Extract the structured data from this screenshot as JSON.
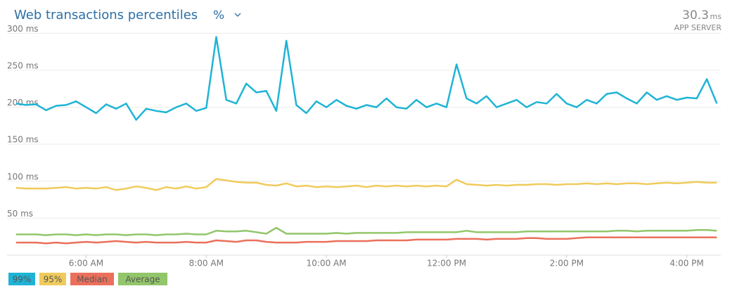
{
  "chart_data": {
    "type": "line",
    "title": "Web transactions percentiles",
    "selector": "%",
    "summary": {
      "value": "30.3",
      "unit": "ms",
      "label": "APP SERVER"
    },
    "x": [
      290,
      300,
      310,
      320,
      330,
      340,
      350,
      360,
      370,
      380,
      390,
      400,
      410,
      420,
      430,
      440,
      450,
      460,
      470,
      480,
      490,
      500,
      510,
      520,
      530,
      540,
      550,
      560,
      570,
      580,
      590,
      600,
      610,
      620,
      630,
      640,
      650,
      660,
      670,
      680,
      690,
      700,
      710,
      720,
      730,
      740,
      750,
      760,
      770,
      780,
      790,
      800,
      810,
      820,
      830,
      840,
      850,
      860,
      870,
      880,
      890,
      900,
      910,
      920,
      930,
      940,
      950,
      960,
      970,
      980,
      990
    ],
    "xlim": [
      281,
      994
    ],
    "xticks": [
      {
        "value": 360,
        "label": "6:00 AM"
      },
      {
        "value": 480,
        "label": "8:00 AM"
      },
      {
        "value": 600,
        "label": "10:00 AM"
      },
      {
        "value": 720,
        "label": "12:00 PM"
      },
      {
        "value": 840,
        "label": "2:00 PM"
      },
      {
        "value": 960,
        "label": "4:00 PM"
      }
    ],
    "ylim": [
      0,
      307
    ],
    "yticks": [
      {
        "value": 50,
        "label": "50 ms"
      },
      {
        "value": 100,
        "label": "100 ms"
      },
      {
        "value": 150,
        "label": "150 ms"
      },
      {
        "value": 200,
        "label": "200 ms"
      },
      {
        "value": 250,
        "label": "250 ms"
      },
      {
        "value": 300,
        "label": "300 ms"
      }
    ],
    "grid": true,
    "legend": "bottom-left",
    "series": [
      {
        "name": "99%",
        "color": "#1fb4d6",
        "values": [
          205,
          203,
          204,
          196,
          202,
          203,
          208,
          200,
          192,
          204,
          198,
          205,
          183,
          198,
          195,
          193,
          200,
          205,
          195,
          199,
          295,
          210,
          205,
          232,
          220,
          222,
          195,
          290,
          203,
          192,
          208,
          200,
          210,
          202,
          198,
          203,
          200,
          212,
          200,
          198,
          210,
          200,
          205,
          200,
          258,
          212,
          205,
          215,
          200,
          205,
          210,
          200,
          207,
          205,
          218,
          205,
          200,
          210,
          205,
          218,
          220,
          212,
          205,
          220,
          210,
          215,
          210,
          213,
          212,
          238,
          205
        ]
      },
      {
        "name": "95%",
        "color": "#f0cb5c",
        "values": [
          91,
          90,
          90,
          90,
          91,
          92,
          90,
          91,
          90,
          92,
          88,
          90,
          93,
          91,
          88,
          92,
          90,
          93,
          90,
          92,
          103,
          101,
          99,
          98,
          98,
          95,
          94,
          97,
          93,
          94,
          92,
          93,
          92,
          93,
          94,
          92,
          94,
          93,
          94,
          93,
          94,
          93,
          94,
          93,
          102,
          96,
          95,
          94,
          95,
          94,
          95,
          95,
          96,
          96,
          95,
          96,
          96,
          97,
          96,
          97,
          96,
          97,
          97,
          96,
          97,
          98,
          97,
          98,
          99,
          98,
          98
        ]
      },
      {
        "name": "Median",
        "color": "#eb705c",
        "values": [
          17,
          17,
          17,
          16,
          17,
          16,
          17,
          18,
          17,
          18,
          19,
          18,
          17,
          18,
          17,
          17,
          17,
          18,
          17,
          17,
          20,
          19,
          18,
          20,
          20,
          18,
          17,
          17,
          17,
          18,
          18,
          18,
          19,
          19,
          19,
          19,
          20,
          20,
          20,
          20,
          21,
          21,
          21,
          21,
          22,
          22,
          22,
          21,
          22,
          22,
          22,
          23,
          23,
          22,
          22,
          22,
          23,
          24,
          24,
          24,
          24,
          24,
          24,
          24,
          24,
          24,
          24,
          24,
          24,
          24,
          24
        ]
      },
      {
        "name": "Average",
        "color": "#93c66a",
        "values": [
          28,
          28,
          28,
          27,
          28,
          28,
          27,
          28,
          27,
          28,
          28,
          27,
          28,
          28,
          27,
          28,
          28,
          29,
          28,
          28,
          33,
          32,
          32,
          33,
          31,
          29,
          37,
          29,
          29,
          29,
          29,
          29,
          30,
          29,
          30,
          30,
          30,
          30,
          30,
          31,
          31,
          31,
          31,
          31,
          31,
          33,
          31,
          31,
          31,
          31,
          31,
          32,
          32,
          32,
          32,
          32,
          32,
          32,
          32,
          32,
          33,
          33,
          32,
          33,
          33,
          33,
          33,
          33,
          34,
          34,
          33
        ]
      }
    ]
  }
}
